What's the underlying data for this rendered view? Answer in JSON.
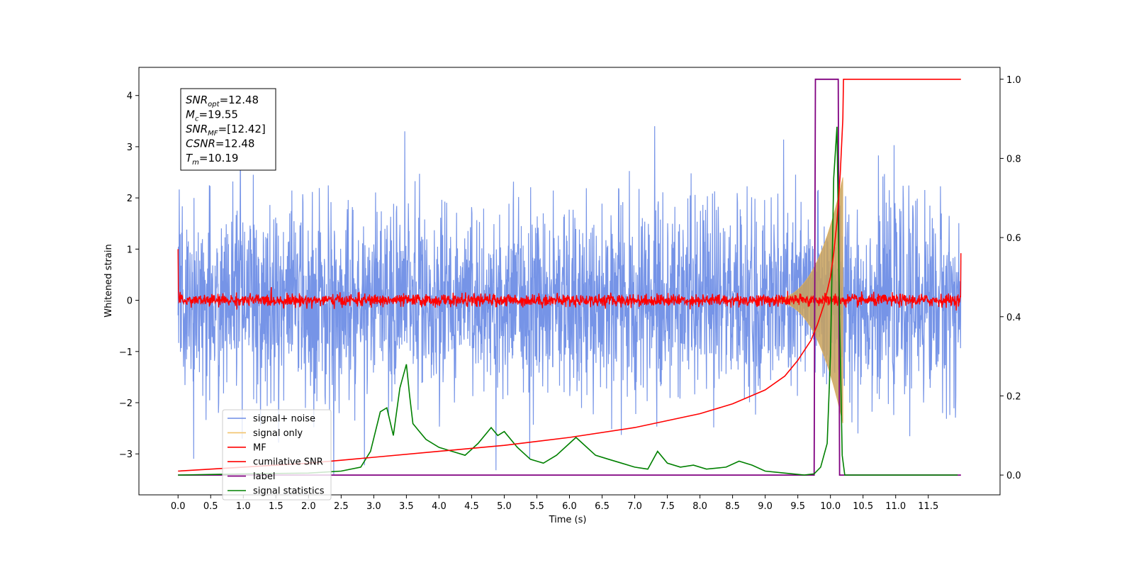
{
  "chart_data": {
    "type": "line",
    "xlabel": "Time (s)",
    "ylabel": "Whitened strain",
    "xlim": [
      -0.6,
      12.6
    ],
    "ylim": [
      -3.8,
      4.55
    ],
    "y2lim": [
      -0.05,
      1.03
    ],
    "x_ticks": [
      "0.0",
      "0.5",
      "1.0",
      "1.5",
      "2.0",
      "2.5",
      "3.0",
      "3.5",
      "4.0",
      "4.5",
      "5.0",
      "5.5",
      "6.0",
      "6.5",
      "7.0",
      "7.5",
      "8.0",
      "8.5",
      "9.0",
      "9.5",
      "10.0",
      "10.5",
      "11.0",
      "11.5"
    ],
    "y_ticks": [
      "−3",
      "−2",
      "−1",
      "0",
      "1",
      "2",
      "3",
      "4"
    ],
    "y2_ticks": [
      "0.0",
      "0.2",
      "0.4",
      "0.6",
      "0.8",
      "1.0"
    ],
    "annotation": {
      "lines": [
        {
          "symbol": "SNR",
          "sub": "opt",
          "value": "=12.48"
        },
        {
          "symbol": "M",
          "sub": "c",
          "value": "=19.55"
        },
        {
          "symbol": "SNR",
          "sub": "MF",
          "value": "=[12.42]"
        },
        {
          "symbol": "CSNR",
          "sub": "",
          "value": "=12.48"
        },
        {
          "symbol": "T",
          "sub": "m",
          "value": "=10.19"
        }
      ]
    },
    "legend": {
      "placement": "lower-left",
      "entries": [
        {
          "label": "signal+ noise",
          "color": "#6f8ee6"
        },
        {
          "label": "signal only",
          "color": "#f2c36b"
        },
        {
          "label": "MF",
          "color": "#ff0000"
        },
        {
          "label": "cumilative SNR",
          "color": "#ff0000"
        },
        {
          "label": "label",
          "color": "#800080"
        },
        {
          "label": "signal statistics",
          "color": "#008000"
        }
      ]
    },
    "series": [
      {
        "name": "signal+ noise",
        "axis": "left",
        "color": "#6f8ee6",
        "kind": "noise",
        "x_range": [
          0.0,
          12.0
        ],
        "y_range_approx": [
          -3.5,
          3.2
        ]
      },
      {
        "name": "signal only",
        "axis": "left",
        "color": "#f2c36b",
        "kind": "chirp",
        "x_range": [
          9.0,
          10.19
        ],
        "peak_amplitude": 2.4
      },
      {
        "name": "MF",
        "axis": "left",
        "color": "#ff0000",
        "kind": "noise",
        "x_range": [
          0.0,
          12.0
        ],
        "edge_values": [
          1.0,
          0.92
        ]
      },
      {
        "name": "cumilative SNR",
        "axis": "right",
        "color": "#ff0000",
        "x": [
          0.0,
          1.0,
          2.0,
          3.0,
          4.0,
          5.0,
          6.0,
          7.0,
          8.0,
          8.5,
          9.0,
          9.3,
          9.5,
          9.7,
          9.8,
          9.9,
          10.0,
          10.05,
          10.1,
          10.15,
          10.19,
          10.2,
          10.5,
          11.0,
          11.5,
          12.0
        ],
        "y": [
          0.01,
          0.02,
          0.03,
          0.045,
          0.06,
          0.075,
          0.095,
          0.12,
          0.155,
          0.18,
          0.215,
          0.25,
          0.29,
          0.34,
          0.38,
          0.43,
          0.5,
          0.56,
          0.64,
          0.76,
          0.9,
          1.0,
          1.0,
          1.0,
          1.0,
          1.0
        ]
      },
      {
        "name": "label",
        "axis": "right",
        "color": "#800080",
        "x": [
          0.0,
          9.75,
          9.77,
          10.12,
          10.14,
          10.2,
          11.0,
          12.0
        ],
        "y": [
          0.0,
          0.0,
          1.0,
          1.0,
          0.0,
          0.0,
          0.0,
          0.0
        ]
      },
      {
        "name": "signal statistics",
        "axis": "right",
        "color": "#008000",
        "x": [
          0.0,
          1.0,
          2.0,
          2.5,
          2.8,
          2.95,
          3.1,
          3.2,
          3.3,
          3.4,
          3.5,
          3.55,
          3.6,
          3.65,
          3.7,
          3.8,
          4.0,
          4.2,
          4.4,
          4.6,
          4.8,
          4.9,
          5.0,
          5.2,
          5.4,
          5.6,
          5.8,
          6.0,
          6.1,
          6.2,
          6.4,
          6.6,
          6.8,
          7.0,
          7.2,
          7.35,
          7.5,
          7.7,
          7.9,
          8.1,
          8.4,
          8.6,
          8.8,
          9.0,
          9.3,
          9.6,
          9.75,
          9.85,
          9.95,
          10.0,
          10.05,
          10.1,
          10.14,
          10.18,
          10.22,
          10.5,
          11.0,
          11.5,
          11.95
        ],
        "y": [
          0.0,
          0.003,
          0.005,
          0.01,
          0.02,
          0.06,
          0.16,
          0.17,
          0.1,
          0.22,
          0.28,
          0.2,
          0.13,
          0.12,
          0.11,
          0.09,
          0.07,
          0.06,
          0.05,
          0.08,
          0.12,
          0.1,
          0.11,
          0.07,
          0.04,
          0.03,
          0.05,
          0.08,
          0.095,
          0.08,
          0.05,
          0.04,
          0.03,
          0.02,
          0.015,
          0.06,
          0.03,
          0.02,
          0.025,
          0.015,
          0.02,
          0.035,
          0.025,
          0.01,
          0.005,
          0.0,
          0.003,
          0.02,
          0.08,
          0.3,
          0.75,
          0.88,
          0.4,
          0.05,
          0.0,
          0.0,
          0.0,
          0.0,
          0.0
        ]
      }
    ]
  }
}
